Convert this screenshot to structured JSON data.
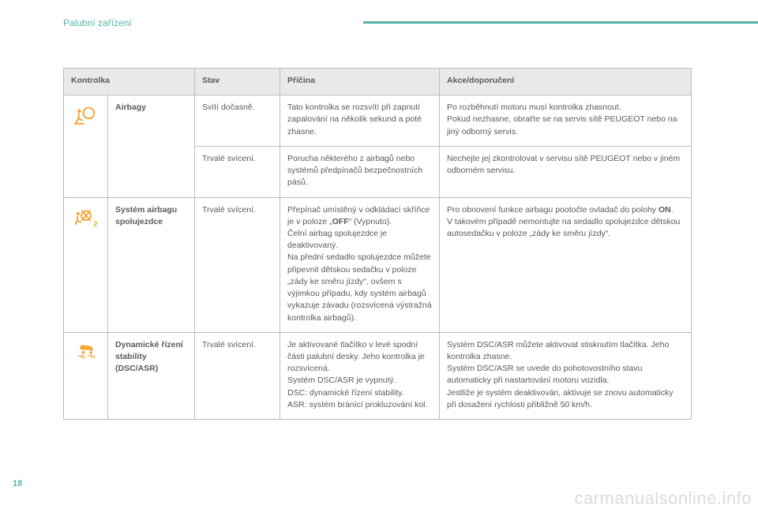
{
  "header": {
    "section_title": "Palubní zařízení",
    "rule_color": "#55b5aa"
  },
  "page_number": "18",
  "watermark": "carmanualsonline.info",
  "table": {
    "head": {
      "col1": "Kontrolka",
      "col3": "Stav",
      "col4": "Příčina",
      "col5": "Akce/doporučení"
    },
    "rows": [
      {
        "icon": "airbag",
        "icon_color": "#f2a637",
        "name": "Airbagy",
        "sub": [
          {
            "state": "Svítí dočasně.",
            "cause": "Tato kontrolka se rozsvítí při zapnutí zapalování na několik sekund a poté zhasne.",
            "action": "Po rozběhnutí motoru musí kontrolka zhasnout.\nPokud nezhasne, obraťte se na servis sítě PEUGEOT nebo na jiný odborný servis."
          },
          {
            "state": "Trvalé svícení.",
            "cause": "Porucha některého z airbagů nebo systémů předpínačů bezpečnostních pásů.",
            "action": "Nechejte jej zkontrolovat v servisu sítě PEUGEOT nebo v jiném odborném servisu."
          }
        ]
      },
      {
        "icon": "airbag-off",
        "icon_color": "#f2a637",
        "name": "Systém airbagu spolujezdce",
        "sub": [
          {
            "state": "Trvalé svícení.",
            "cause_html": "Přepínač umístěný v odkládací skříňce je v poloze „<b>OFF</b>“ (Vypnuto).\nČelní airbag spolujezdce je deaktivovaný.\nNa přední sedadlo spolujezdce můžete připevnit dětskou sedačku v poloze „zády ke směru jízdy“, ovšem s výjimkou případu, kdy systém airbagů vykazuje závadu (rozsvícená výstražná kontrolka airbagů).",
            "action_html": "Pro obnovení funkce airbagu pootočte ovladač do polohy <b>ON</b>.\nV takovém případě nemontujte na sedadlo spolujezdce dětskou autosedačku v poloze „zády ke směru jízdy“."
          }
        ]
      },
      {
        "icon": "dsc",
        "icon_color": "#f2a637",
        "name": "Dynamické řízení stability (DSC/ASR)",
        "sub": [
          {
            "state": "Trvalé svícení.",
            "cause": "Je aktivované tlačítko v levé spodní části palubní desky. Jeho kontrolka je rozsvícená.\nSystém DSC/ASR je vypnutý.\nDSC: dynamické řízení stability.\nASR: systém bránící prokluzování kol.",
            "action": "Systém DSC/ASR můžete aktivovat stisknutím tlačítka. Jeho kontrolka zhasne.\nSystém DSC/ASR se uvede do pohotovostního stavu automaticky při nastartování motoru vozidla.\nJestliže je systém deaktivován, aktivuje se znovu automaticky při dosažení rychlosti přibližně 50 km/h."
          }
        ]
      }
    ]
  },
  "colors": {
    "border": "#bdbdbd",
    "head_bg": "#e9e9e9",
    "text": "#5a5a5a",
    "accent": "#55b5aa",
    "icon": "#f2a637"
  },
  "typography": {
    "body_font_size_pt": 8,
    "title_font_size_pt": 9,
    "font_family": "Arial"
  }
}
